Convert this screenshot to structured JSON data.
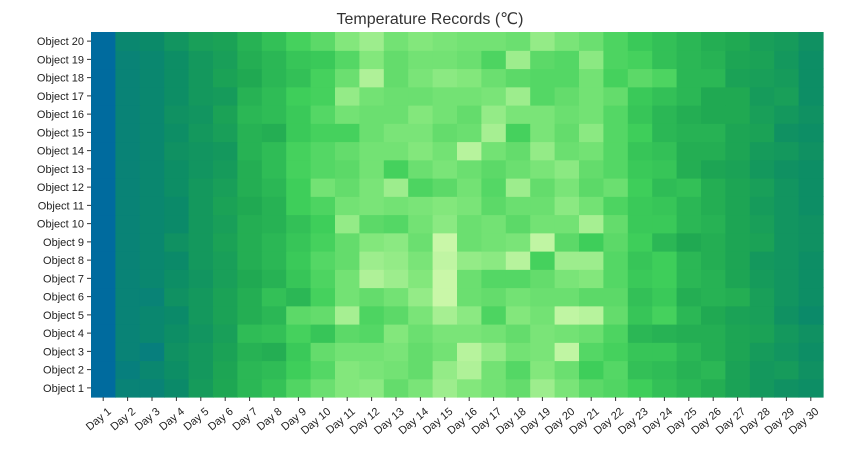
{
  "chart_data": {
    "type": "heatmap",
    "title": "Temperature Records (℃)",
    "x_categories": [
      "Day 1",
      "Day 2",
      "Day 3",
      "Day 4",
      "Day 5",
      "Day 6",
      "Day 7",
      "Day 8",
      "Day 9",
      "Day 10",
      "Day 11",
      "Day 12",
      "Day 13",
      "Day 14",
      "Day 15",
      "Day 16",
      "Day 17",
      "Day 18",
      "Day 19",
      "Day 20",
      "Day 21",
      "Day 22",
      "Day 23",
      "Day 24",
      "Day 25",
      "Day 26",
      "Day 27",
      "Day 28",
      "Day 29",
      "Day 30"
    ],
    "y_categories": [
      "Object 1",
      "Object 2",
      "Object 3",
      "Object 4",
      "Object 5",
      "Object 6",
      "Object 7",
      "Object 8",
      "Object 9",
      "Object 10",
      "Object 11",
      "Object 12",
      "Object 13",
      "Object 14",
      "Object 15",
      "Object 16",
      "Object 17",
      "Object 18",
      "Object 19",
      "Object 20"
    ],
    "values": [
      [
        0,
        12,
        12,
        16,
        26,
        33,
        40,
        45,
        55,
        62,
        68,
        70,
        60,
        66,
        74,
        68,
        64,
        60,
        74,
        66,
        58,
        55,
        50,
        44,
        40,
        36,
        30,
        24,
        20,
        18
      ],
      [
        0,
        10,
        14,
        18,
        24,
        32,
        40,
        42,
        50,
        56,
        68,
        66,
        64,
        60,
        72,
        78,
        64,
        56,
        68,
        62,
        50,
        56,
        44,
        42,
        38,
        40,
        30,
        24,
        26,
        20
      ],
      [
        0,
        12,
        10,
        20,
        24,
        30,
        38,
        36,
        48,
        60,
        64,
        64,
        66,
        60,
        64,
        80,
        72,
        64,
        66,
        82,
        56,
        52,
        46,
        46,
        40,
        36,
        32,
        26,
        22,
        18
      ],
      [
        0,
        12,
        14,
        18,
        22,
        28,
        42,
        44,
        52,
        46,
        58,
        56,
        68,
        62,
        66,
        66,
        64,
        60,
        66,
        64,
        62,
        54,
        40,
        38,
        36,
        36,
        32,
        30,
        24,
        20
      ],
      [
        0,
        12,
        14,
        16,
        24,
        30,
        36,
        40,
        58,
        60,
        76,
        54,
        58,
        66,
        76,
        70,
        54,
        68,
        64,
        82,
        80,
        60,
        46,
        52,
        40,
        34,
        30,
        28,
        20,
        16
      ],
      [
        0,
        12,
        12,
        20,
        24,
        30,
        36,
        44,
        40,
        52,
        64,
        60,
        64,
        72,
        84,
        62,
        60,
        64,
        62,
        62,
        58,
        58,
        44,
        48,
        36,
        38,
        36,
        28,
        22,
        18
      ],
      [
        0,
        12,
        14,
        18,
        22,
        28,
        34,
        38,
        46,
        54,
        64,
        78,
        74,
        68,
        84,
        62,
        56,
        56,
        60,
        66,
        68,
        56,
        48,
        50,
        40,
        38,
        32,
        26,
        22,
        18
      ],
      [
        0,
        12,
        14,
        16,
        24,
        28,
        36,
        40,
        48,
        56,
        60,
        74,
        72,
        66,
        82,
        72,
        70,
        80,
        52,
        74,
        74,
        56,
        46,
        50,
        40,
        36,
        32,
        24,
        22,
        18
      ],
      [
        0,
        12,
        14,
        20,
        24,
        30,
        36,
        40,
        46,
        52,
        60,
        68,
        70,
        62,
        84,
        62,
        64,
        66,
        82,
        58,
        50,
        58,
        50,
        40,
        34,
        36,
        32,
        30,
        22,
        20
      ],
      [
        0,
        12,
        14,
        16,
        24,
        28,
        36,
        38,
        44,
        50,
        72,
        58,
        56,
        64,
        70,
        62,
        64,
        58,
        64,
        64,
        76,
        60,
        48,
        48,
        40,
        38,
        32,
        28,
        22,
        20
      ],
      [
        0,
        12,
        14,
        16,
        24,
        30,
        34,
        38,
        50,
        54,
        64,
        66,
        64,
        66,
        68,
        66,
        58,
        62,
        62,
        70,
        64,
        54,
        48,
        46,
        40,
        36,
        32,
        26,
        22,
        18
      ],
      [
        0,
        12,
        14,
        18,
        24,
        28,
        36,
        40,
        50,
        64,
        60,
        66,
        74,
        54,
        58,
        64,
        56,
        74,
        60,
        66,
        58,
        62,
        50,
        42,
        44,
        36,
        32,
        28,
        22,
        18
      ],
      [
        0,
        12,
        14,
        18,
        22,
        26,
        36,
        42,
        52,
        56,
        58,
        64,
        52,
        62,
        66,
        62,
        58,
        62,
        66,
        70,
        60,
        56,
        48,
        46,
        36,
        32,
        30,
        24,
        20,
        18
      ],
      [
        0,
        12,
        14,
        20,
        22,
        24,
        38,
        42,
        52,
        56,
        60,
        64,
        64,
        68,
        64,
        80,
        64,
        60,
        72,
        62,
        64,
        56,
        46,
        44,
        36,
        36,
        32,
        26,
        24,
        20
      ],
      [
        0,
        12,
        14,
        18,
        24,
        28,
        38,
        36,
        48,
        52,
        52,
        62,
        66,
        66,
        60,
        62,
        76,
        52,
        66,
        60,
        70,
        56,
        50,
        40,
        38,
        38,
        32,
        30,
        20,
        18
      ],
      [
        0,
        12,
        14,
        20,
        22,
        30,
        40,
        42,
        48,
        56,
        64,
        62,
        62,
        68,
        64,
        60,
        72,
        66,
        66,
        62,
        64,
        56,
        46,
        40,
        36,
        34,
        34,
        28,
        24,
        20
      ],
      [
        0,
        12,
        14,
        18,
        24,
        26,
        38,
        42,
        50,
        52,
        72,
        64,
        62,
        62,
        64,
        64,
        66,
        74,
        56,
        60,
        64,
        60,
        48,
        44,
        40,
        34,
        34,
        26,
        28,
        18
      ],
      [
        0,
        12,
        14,
        18,
        24,
        30,
        34,
        40,
        44,
        52,
        62,
        78,
        60,
        66,
        70,
        68,
        62,
        58,
        56,
        56,
        64,
        52,
        58,
        54,
        40,
        40,
        30,
        28,
        26,
        18
      ],
      [
        0,
        12,
        14,
        18,
        24,
        28,
        36,
        40,
        46,
        48,
        56,
        68,
        60,
        64,
        64,
        62,
        54,
        74,
        58,
        56,
        70,
        54,
        52,
        44,
        40,
        38,
        32,
        30,
        24,
        18
      ],
      [
        0,
        14,
        16,
        22,
        28,
        30,
        38,
        44,
        52,
        58,
        68,
        74,
        64,
        68,
        66,
        64,
        64,
        62,
        72,
        66,
        62,
        54,
        48,
        44,
        40,
        36,
        34,
        28,
        26,
        20
      ]
    ],
    "value_range": [
      0,
      84
    ],
    "colormap": [
      "#006b9e",
      "#0c8c66",
      "#1fa852",
      "#3fcf5a",
      "#7fe67a",
      "#c9f7a8"
    ],
    "legend": "none",
    "grid": false
  }
}
